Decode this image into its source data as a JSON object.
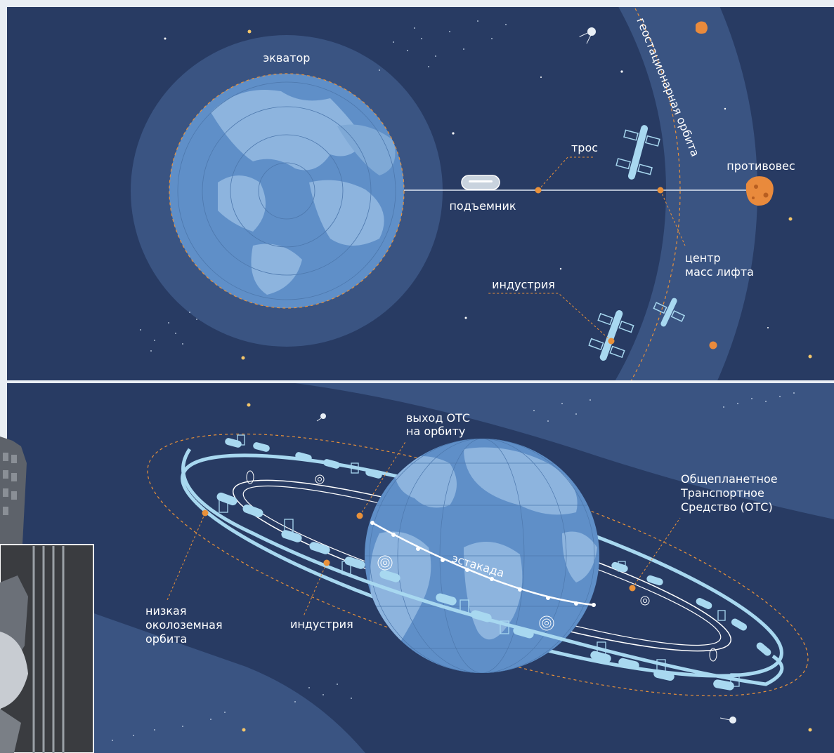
{
  "top_panel": {
    "equator_label": "экватор",
    "geo_orbit_label": "геостационарная орбита",
    "cable_label": "трос",
    "counterweight_label": "противовес",
    "lift_label": "подъемник",
    "center_mass_label_line1": "центр",
    "center_mass_label_line2": "масс лифта",
    "industry_label": "индустрия"
  },
  "bottom_panel": {
    "ots_exit_line1": "выход ОТС",
    "ots_exit_line2": "на орбиту",
    "ots_line1": "Общепланетное",
    "ots_line2": "Транспортное",
    "ots_line3": "Средство (ОТС)",
    "overpass_label": "эстакада",
    "leo_line1": "низкая",
    "leo_line2": "околоземная",
    "leo_line3": "орбита",
    "industry_label": "индустрия"
  },
  "colors": {
    "space": "#283b63",
    "band": "#3a5482",
    "earth": "#5f8fc8",
    "land": "#8db4de",
    "accent": "#e9913a",
    "ring": "#a8d8f0"
  }
}
